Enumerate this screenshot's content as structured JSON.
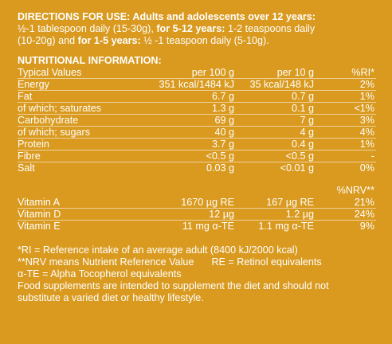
{
  "directions": {
    "heading": "DIRECTIONS FOR USE: Adults and adolescents over 12 years:",
    "line2_a": "½-1 tablespoon daily (15-30g),",
    "line2_b": "for 5-12 years:",
    "line2_c": "1-2 teaspoons daily",
    "line3_a": "(10-20g) and",
    "line3_b": "for 1-5 years:",
    "line3_c": "½ -1 teaspoon daily (5-10g)."
  },
  "nutrition": {
    "heading": "NUTRITIONAL INFORMATION:",
    "header": {
      "label": "Typical Values",
      "per100": "per 100 g",
      "per10": "per 10 g",
      "ri": "%RI*"
    },
    "rows": [
      {
        "label": "Energy",
        "per100": "351 kcal/1484 kJ",
        "per10": "35 kcal/148 kJ",
        "ri": "2%"
      },
      {
        "label": "Fat",
        "per100": "6.7 g",
        "per10": "0.7 g",
        "ri": "1%"
      },
      {
        "label": "of which; saturates",
        "per100": "1.3 g",
        "per10": "0.1 g",
        "ri": "<1%"
      },
      {
        "label": "Carbohydrate",
        "per100": "69 g",
        "per10": "7 g",
        "ri": "3%"
      },
      {
        "label": "of which; sugars",
        "per100": "40 g",
        "per10": "4 g",
        "ri": "4%"
      },
      {
        "label": "Protein",
        "per100": "3.7 g",
        "per10": "0.4 g",
        "ri": "1%"
      },
      {
        "label": "Fibre",
        "per100": "<0.5 g",
        "per10": "<0.5 g",
        "ri": "-"
      },
      {
        "label": "Salt",
        "per100": "0.03 g",
        "per10": "<0.01 g",
        "ri": "0%"
      }
    ],
    "nrv_header": "%NRV**",
    "vitamins": [
      {
        "label": "Vitamin A",
        "per100": "1670 µg RE",
        "per10": "167 µg RE",
        "ri": "21%"
      },
      {
        "label": "Vitamin D",
        "per100": "12 µg",
        "per10": "1.2 µg",
        "ri": "24%"
      },
      {
        "label": "Vitamin E",
        "per100": "11 mg α-TE",
        "per10": "1.1 mg α-TE",
        "ri": "9%"
      }
    ]
  },
  "footer": {
    "ri_note": "*RI = Reference intake of an average adult (8400 kJ/2000 kcal)",
    "nrv_note": "**NRV means Nutrient Reference Value",
    "re_note": "RE = Retinol equivalents",
    "te_note": "α-TE = Alpha Tocopherol equivalents",
    "supplement_1": "Food supplements are intended to supplement the diet and should not",
    "supplement_2": "substitute a varied diet or healthy lifestyle."
  }
}
